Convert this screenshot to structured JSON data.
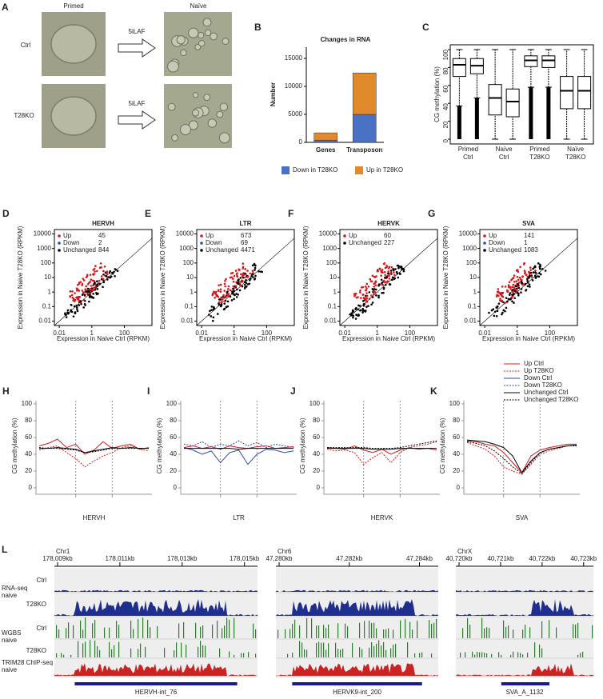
{
  "panels": {
    "A": {
      "label": "A",
      "columns": [
        "Primed",
        "Naïve"
      ],
      "rows": [
        "Ctrl",
        "T28KO"
      ],
      "arrows": [
        "5iLAF",
        "5iLAF"
      ]
    },
    "B": {
      "label": "B",
      "title": "Changes in RNA",
      "y_label": "Number",
      "categories": [
        "Genes",
        "Transposon"
      ],
      "series": [
        {
          "name": "Down in T28KO",
          "color": "#4a72c4",
          "values": [
            400,
            5000
          ]
        },
        {
          "name": "Up in T28KO",
          "color": "#e08a2c",
          "values": [
            1300,
            7400
          ]
        }
      ],
      "ylim": [
        0,
        17000
      ],
      "yticks": [
        0,
        5000,
        10000,
        15000
      ]
    },
    "C": {
      "label": "C",
      "y_label": "CG methylation (%)",
      "groups": [
        [
          "Primed",
          "Ctrl"
        ],
        [
          "Naïve",
          "Ctrl"
        ],
        [
          "Primed",
          "T28KO"
        ],
        [
          "Naïve",
          "T28KO"
        ]
      ],
      "boxes": [
        [
          37,
          70,
          83,
          90,
          100
        ],
        [
          46,
          73,
          82,
          90,
          100
        ],
        [
          0,
          27,
          46,
          61,
          100
        ],
        [
          0,
          25,
          42,
          56,
          100
        ],
        [
          58,
          81,
          88,
          93,
          100
        ],
        [
          58,
          80,
          88,
          93,
          100
        ],
        [
          0,
          34,
          54,
          70,
          100
        ],
        [
          0,
          34,
          54,
          70,
          100
        ]
      ],
      "ylim": [
        0,
        100
      ],
      "yticks": [
        0,
        20,
        40,
        60,
        80,
        100
      ]
    },
    "scatter": [
      {
        "label": "D",
        "title": "HERVH",
        "legend": [
          {
            "name": "Up",
            "count": 45,
            "color": "#d7191c"
          },
          {
            "name": "Down",
            "count": 2,
            "color": "#2b4bb0"
          },
          {
            "name": "Unchanged",
            "count": 844,
            "color": "#000000"
          }
        ]
      },
      {
        "label": "E",
        "title": "LTR",
        "legend": [
          {
            "name": "Up",
            "count": 673,
            "color": "#d7191c"
          },
          {
            "name": "Down",
            "count": 69,
            "color": "#2b4bb0"
          },
          {
            "name": "Unchanged",
            "count": 4471,
            "color": "#000000"
          }
        ]
      },
      {
        "label": "F",
        "title": "HERVK",
        "legend": [
          {
            "name": "Up",
            "count": 60,
            "color": "#d7191c"
          },
          {
            "name": "Unchanged",
            "count": 227,
            "color": "#000000"
          }
        ]
      },
      {
        "label": "G",
        "title": "SVA",
        "legend": [
          {
            "name": "Up",
            "count": 141,
            "color": "#d7191c"
          },
          {
            "name": "Down",
            "count": 1,
            "color": "#2b4bb0"
          },
          {
            "name": "Unchanged",
            "count": 1083,
            "color": "#000000"
          }
        ]
      }
    ],
    "scatter_axes": {
      "x_label": "Expression in Naive Ctrl (RPKM)",
      "y_label": "Expression in Naive T28KO (RPKM)",
      "log": true,
      "xlim": [
        0.005,
        5000
      ],
      "xticks": [
        0.01,
        1,
        100
      ],
      "ylim": [
        0.005,
        20000
      ],
      "yticks": [
        0.01,
        0.1,
        1,
        10,
        100,
        1000,
        10000
      ]
    },
    "profile": [
      {
        "label": "H",
        "x_label": "HERVH",
        "series": [
          {
            "color": "#d7191c",
            "dashed": false,
            "values": [
              50,
              53,
              58,
              48,
              52,
              40,
              45,
              55,
              47,
              50,
              52,
              46,
              48
            ]
          },
          {
            "color": "#d7191c",
            "dashed": true,
            "values": [
              45,
              48,
              50,
              42,
              35,
              25,
              32,
              38,
              42,
              48,
              50,
              46,
              44
            ]
          },
          {
            "color": "#000000",
            "dashed": false,
            "values": [
              47,
              47,
              48,
              47,
              46,
              42,
              44,
              46,
              48,
              47,
              48,
              47,
              47
            ]
          },
          {
            "color": "#000000",
            "dashed": true,
            "values": [
              48,
              47,
              47,
              46,
              45,
              42,
              43,
              45,
              47,
              47,
              47,
              47,
              47
            ]
          }
        ]
      },
      {
        "label": "I",
        "x_label": "LTR",
        "series": [
          {
            "color": "#2b4bb0",
            "dashed": false,
            "values": [
              48,
              45,
              40,
              44,
              30,
              42,
              45,
              28,
              40,
              46,
              45,
              42,
              44
            ]
          },
          {
            "color": "#2b4bb0",
            "dashed": true,
            "values": [
              52,
              50,
              55,
              48,
              52,
              50,
              56,
              50,
              54,
              48,
              52,
              50,
              48
            ]
          },
          {
            "color": "#d7191c",
            "dashed": false,
            "values": [
              48,
              50,
              47,
              49,
              46,
              50,
              48,
              47,
              49,
              50,
              47,
              48,
              49
            ]
          },
          {
            "color": "#000000",
            "dashed": false,
            "values": [
              47,
              47,
              47,
              47,
              47,
              47,
              46,
              47,
              47,
              47,
              47,
              47,
              47
            ]
          }
        ]
      },
      {
        "label": "J",
        "x_label": "HERVK",
        "series": [
          {
            "color": "#d7191c",
            "dashed": false,
            "values": [
              48,
              47,
              46,
              50,
              45,
              42,
              46,
              40,
              45,
              48,
              46,
              47,
              45
            ]
          },
          {
            "color": "#d7191c",
            "dashed": true,
            "values": [
              46,
              44,
              45,
              42,
              28,
              36,
              42,
              30,
              42,
              48,
              50,
              52,
              55
            ]
          },
          {
            "color": "#000000",
            "dashed": false,
            "values": [
              47,
              47,
              47,
              47,
              47,
              46,
              46,
              46,
              47,
              47,
              47,
              47,
              47
            ]
          },
          {
            "color": "#000000",
            "dashed": true,
            "values": [
              48,
              48,
              48,
              48,
              48,
              47,
              47,
              47,
              48,
              50,
              52,
              54,
              56
            ]
          }
        ]
      },
      {
        "label": "K",
        "x_label": "SVA",
        "series": [
          {
            "color": "#d7191c",
            "dashed": false,
            "values": [
              56,
              55,
              52,
              50,
              42,
              30,
              18,
              38,
              45,
              48,
              50,
              52,
              52
            ]
          },
          {
            "color": "#d7191c",
            "dashed": true,
            "values": [
              54,
              50,
              46,
              38,
              25,
              20,
              16,
              28,
              40,
              44,
              47,
              50,
              50
            ]
          },
          {
            "color": "#000000",
            "dashed": false,
            "values": [
              57,
              56,
              55,
              52,
              48,
              38,
              18,
              32,
              42,
              46,
              48,
              50,
              51
            ]
          },
          {
            "color": "#000000",
            "dashed": true,
            "values": [
              55,
              53,
              50,
              44,
              35,
              25,
              17,
              30,
              42,
              46,
              48,
              50,
              50
            ]
          }
        ]
      }
    ],
    "profile_axes": {
      "y_label": "CG methylation (%)",
      "ylim": [
        0,
        100
      ],
      "yticks": [
        0,
        20,
        40,
        60,
        80,
        100
      ]
    },
    "profile_legend": [
      {
        "name": "Up Ctrl",
        "color": "#d7191c",
        "dashed": false
      },
      {
        "name": "Up T28KO",
        "color": "#d7191c",
        "dashed": true
      },
      {
        "name": "Down Ctrl",
        "color": "#2b4bb0",
        "dashed": false
      },
      {
        "name": "Down T28KO",
        "color": "#2b4bb0",
        "dashed": true
      },
      {
        "name": "Unchanged Ctrl",
        "color": "#000000",
        "dashed": false
      },
      {
        "name": "Unchanged T28KO",
        "color": "#000000",
        "dashed": true
      }
    ],
    "L": {
      "label": "L",
      "tracks": [
        {
          "group": [
            "RNA-seq",
            "naive"
          ],
          "rows": [
            "Ctrl",
            "T28KO"
          ]
        },
        {
          "group": [
            "WGBS",
            "naive"
          ],
          "rows": [
            "Ctrl",
            "T28KO"
          ]
        },
        {
          "group": [
            "TRIM28 ChIP-seq",
            "naive"
          ],
          "rows": []
        }
      ],
      "loci": [
        {
          "chrom": "Chr1",
          "ticks": [
            "178,009kb",
            "178,011kb",
            "178,013kb",
            "178,015kb"
          ],
          "gene": "HERVH-int_76"
        },
        {
          "chrom": "Chr6",
          "ticks": [
            "47,280kb",
            "47,282kb",
            "47,284kb"
          ],
          "gene": "HERVK9-int_200"
        },
        {
          "chrom": "ChrX",
          "ticks": [
            "40,720kb",
            "40,721kb",
            "40,722kb",
            "40,723kb"
          ],
          "gene": "SVA_A_1132"
        }
      ]
    }
  }
}
